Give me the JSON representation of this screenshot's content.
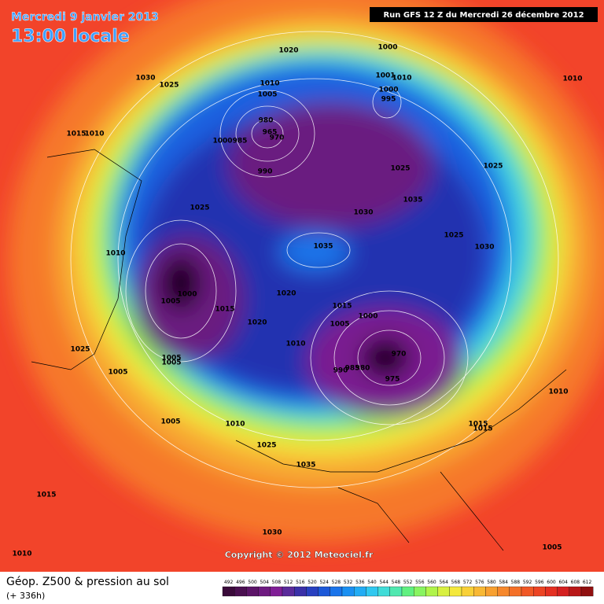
{
  "header": {
    "date": "Mercredi 9 janvier 2013",
    "time": "13:00 locale",
    "run": "Run GFS 12 Z du Mercredi 26 décembre 2012"
  },
  "copyright": "Copyright © 2012 Meteociel.fr",
  "footer": {
    "title": "Géop. Z500 & pression au sol",
    "subtitle": "(+ 336h)"
  },
  "isobar_labels": [
    "1020",
    "1000",
    "1030",
    "1025",
    "1001",
    "1010",
    "1010",
    "1010",
    "1005",
    "1000",
    "995",
    "980",
    "965",
    "970",
    "1015",
    "1010",
    "1000",
    "985",
    "990",
    "1025",
    "1025",
    "1025",
    "1030",
    "1035",
    "1025",
    "1030",
    "1010",
    "1035",
    "1000",
    "1005",
    "1020",
    "1015",
    "1015",
    "1000",
    "1005",
    "1020",
    "1010",
    "970",
    "990",
    "985",
    "980",
    "975",
    "1025",
    "1005",
    "1005",
    "1005",
    "1010",
    "1005",
    "1010",
    "1015",
    "1015",
    "1025",
    "1035",
    "1015",
    "1030",
    "1010",
    "1005"
  ],
  "colorbar": {
    "values": [
      492,
      496,
      500,
      504,
      508,
      512,
      516,
      520,
      524,
      528,
      532,
      536,
      540,
      544,
      548,
      552,
      556,
      560,
      564,
      568,
      572,
      576,
      580,
      584,
      588,
      592,
      596,
      600,
      604,
      608,
      612
    ],
    "colors": [
      "#3a0a3a",
      "#4a0f50",
      "#5c1468",
      "#6e1a80",
      "#801e96",
      "#5a2a9a",
      "#3a30a8",
      "#2840c0",
      "#1c58d8",
      "#1a74ea",
      "#1a90f2",
      "#22acf4",
      "#30c8f0",
      "#40dcd8",
      "#50e8b0",
      "#60f080",
      "#88f460",
      "#b0f44a",
      "#d8f040",
      "#f4e83c",
      "#f8d038",
      "#f8b834",
      "#f8a030",
      "#f6882c",
      "#f47028",
      "#f05826",
      "#ec4424",
      "#e43022",
      "#d42020",
      "#b81818",
      "#901010"
    ]
  }
}
